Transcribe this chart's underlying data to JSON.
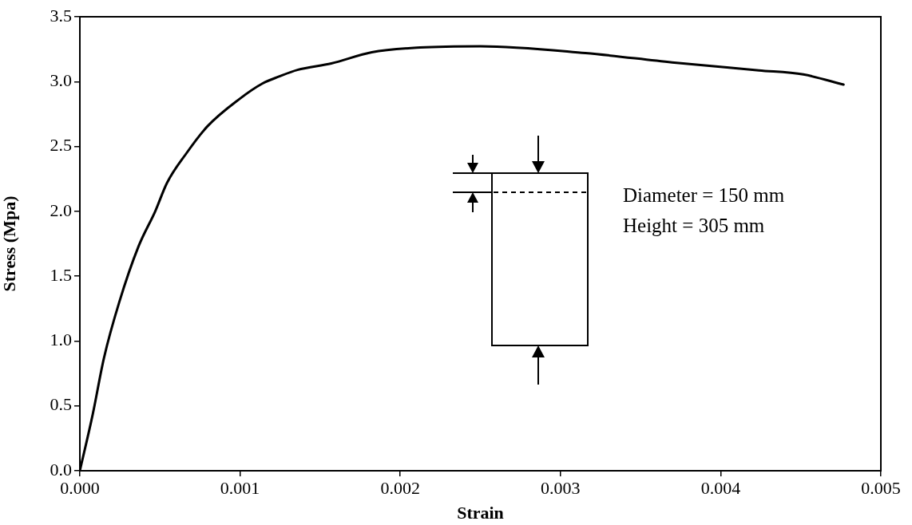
{
  "chart_data": {
    "type": "line",
    "xlabel": "Strain",
    "ylabel": "Stress (Mpa)",
    "annotations": [
      "Diameter = 150 mm",
      "Height = 305 mm"
    ],
    "x": [
      0,
      8e-05,
      0.00015,
      0.000246,
      0.000366,
      0.000471,
      0.000544,
      0.000662,
      0.000796,
      0.000996,
      0.001139,
      0.001243,
      0.001358,
      0.00157,
      0.001822,
      0.002124,
      0.002501,
      0.003156,
      0.003697,
      0.004239,
      0.004516,
      0.004767
    ],
    "series": [
      {
        "color": "#000000",
        "values": [
          0,
          0.433,
          0.867,
          1.3,
          1.729,
          2.002,
          2.219,
          2.442,
          2.655,
          2.866,
          2.985,
          3.039,
          3.09,
          3.14,
          3.226,
          3.263,
          3.273,
          3.22,
          3.148,
          3.087,
          3.055,
          2.977
        ]
      }
    ],
    "xlim": [
      0,
      0.005
    ],
    "xticks": [
      {
        "value": 0,
        "label": "0.000"
      },
      {
        "value": 0.001,
        "label": "0.001"
      },
      {
        "value": 0.002,
        "label": "0.002"
      },
      {
        "value": 0.003,
        "label": "0.003"
      },
      {
        "value": 0.004,
        "label": "0.004"
      },
      {
        "value": 0.005,
        "label": "0.005"
      }
    ],
    "ylim": [
      0,
      3.5
    ],
    "yticks": [
      {
        "value": 0,
        "label": "0.0"
      },
      0.5,
      {
        "value": 1,
        "label": "1.0"
      },
      1.5,
      {
        "value": 2,
        "label": "2.0"
      },
      2.5,
      {
        "value": 3,
        "label": "3.0"
      },
      3.5
    ],
    "grid": false,
    "legend": false,
    "marker": "none",
    "line_style": "solid"
  }
}
